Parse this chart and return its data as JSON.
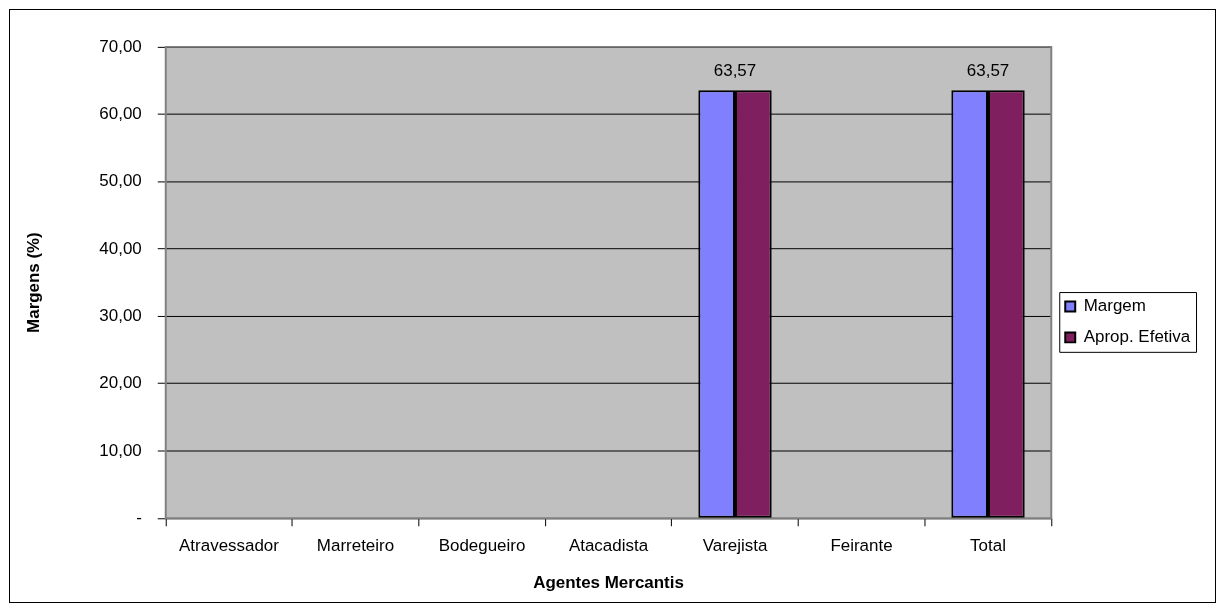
{
  "chart_data": {
    "type": "bar",
    "xlabel": "Agentes Mercantis",
    "ylabel": "Margens (%)",
    "categories": [
      "Atravessador",
      "Marreteiro",
      "Bodegueiro",
      "Atacadista",
      "Varejista",
      "Feirante",
      "Total"
    ],
    "series": [
      {
        "name": "Margem",
        "color": "#8080ff",
        "values": [
          null,
          null,
          null,
          null,
          63.57,
          null,
          63.57
        ],
        "value_labels": [
          null,
          null,
          null,
          null,
          "63,57",
          null,
          "63,57"
        ]
      },
      {
        "name": "Aprop. Efetiva",
        "color": "#7f1f5f",
        "values": [
          null,
          null,
          null,
          null,
          63.57,
          null,
          63.57
        ]
      }
    ],
    "ylim": [
      0,
      70
    ],
    "yticks": [
      {
        "value": 0,
        "label": "-"
      },
      {
        "value": 10,
        "label": "10,00"
      },
      {
        "value": 20,
        "label": "20,00"
      },
      {
        "value": 30,
        "label": "30,00"
      },
      {
        "value": 40,
        "label": "40,00"
      },
      {
        "value": 50,
        "label": "50,00"
      },
      {
        "value": 60,
        "label": "60,00"
      },
      {
        "value": 70,
        "label": "70,00"
      }
    ],
    "grid": "y",
    "legend": "right"
  }
}
